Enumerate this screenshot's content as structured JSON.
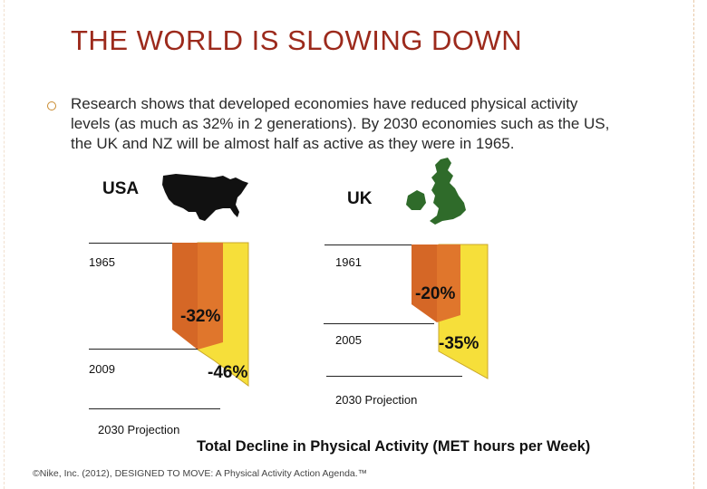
{
  "slide": {
    "title": "THE WORLD IS SLOWING DOWN",
    "bullet_text": "Research shows that developed economies have reduced physical activity levels (as much as 32% in 2 generations). By 2030 economies such as the US, the UK and NZ will be almost half as active as they were in 1965.",
    "caption": "Total Decline in Physical Activity (MET hours per Week)",
    "footer": "©Nike, Inc. (2012), DESIGNED TO MOVE: A Physical Activity Action Agenda.™"
  },
  "usa": {
    "label": "USA",
    "start_year": "1965",
    "mid_year": "2009",
    "end_label": "2030 Projection",
    "mid_decline": "-32%",
    "projected_decline": "-46%"
  },
  "uk": {
    "label": "UK",
    "start_year": "1961",
    "mid_year": "2005",
    "end_label": "2030 Projection",
    "mid_decline": "-20%",
    "projected_decline": "-35%"
  },
  "colors": {
    "title": "#9c2a1c",
    "orange_bar": "#e0762c",
    "yellow_bar": "#f6df3a",
    "map_fill": "#111111",
    "uk_map_fill": "#2f6b2a"
  },
  "icons": {
    "usa_map": "usa-silhouette-icon",
    "uk_map": "uk-silhouette-icon"
  }
}
